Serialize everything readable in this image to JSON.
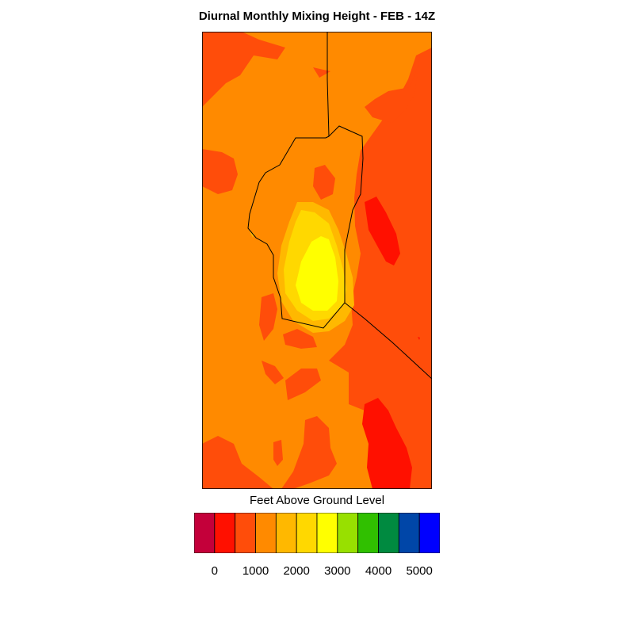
{
  "title": "Diurnal Monthly Mixing Height - FEB - 14Z",
  "legend": {
    "title": "Feet Above Ground Level",
    "colors": [
      "#c4003a",
      "#ff1000",
      "#ff4d0a",
      "#ff8a00",
      "#ffb800",
      "#ffd800",
      "#ffff00",
      "#98e000",
      "#30c000",
      "#008a40",
      "#0046a8",
      "#0000ff"
    ],
    "tick_labels": [
      "0",
      "1000",
      "2000",
      "3000",
      "4000",
      "5000"
    ]
  },
  "map": {
    "fill_colors": {
      "background": "#ff8a00",
      "low": "#ff4d0a",
      "lowest": "#ff1000",
      "mid": "#ffb800",
      "mid_high": "#ffd800",
      "high": "#ffff00"
    }
  }
}
